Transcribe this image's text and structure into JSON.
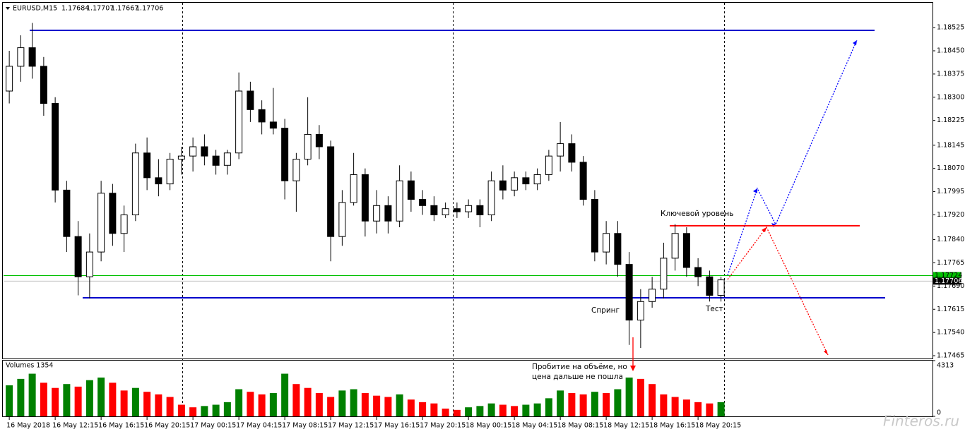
{
  "header": {
    "symbol": "EURUSD,M15",
    "ohlc": [
      1.17684,
      1.17707,
      1.17667,
      1.17706
    ]
  },
  "chart_data": {
    "type": "candlestick",
    "categories": [
      "16 May 2018",
      null,
      null,
      null,
      "16 May 12:15",
      null,
      null,
      null,
      "16 May 16:15",
      null,
      null,
      null,
      "16 May 20:15",
      null,
      null,
      null,
      "17 May 00:15",
      null,
      null,
      null,
      "17 May 04:15",
      null,
      null,
      null,
      "17 May 08:15",
      null,
      null,
      null,
      "17 May 12:15",
      null,
      null,
      null,
      "17 May 16:15",
      null,
      null,
      null,
      "17 May 20:15",
      null,
      null,
      null,
      "18 May 00:15",
      null,
      null,
      null,
      "18 May 04:15",
      null,
      null,
      null,
      "18 May 08:15",
      null,
      null,
      null,
      "18 May 12:15",
      null,
      null,
      null,
      "18 May 16:15",
      null,
      null,
      null,
      "18 May 20:15",
      null,
      null
    ],
    "open": [
      1.1832,
      1.184,
      1.1846,
      1.184,
      1.1828,
      1.18,
      1.1785,
      1.1772,
      1.178,
      1.1799,
      1.1786,
      1.1792,
      1.1812,
      1.1804,
      1.1802,
      1.181,
      1.1811,
      1.1814,
      1.1811,
      1.1808,
      1.1812,
      1.1832,
      1.1826,
      1.1822,
      1.182,
      1.1803,
      1.181,
      1.1818,
      1.1814,
      1.1785,
      1.1796,
      1.1805,
      1.179,
      1.1795,
      1.179,
      1.1803,
      1.1797,
      1.1795,
      1.1792,
      1.1794,
      1.1793,
      1.1795,
      1.1792,
      1.1803,
      1.18,
      1.1804,
      1.1802,
      1.1805,
      1.1811,
      1.1815,
      1.1809,
      1.1797,
      1.178,
      1.1786,
      1.1776,
      1.1758,
      1.1764,
      1.1768,
      1.1778,
      1.1786,
      1.1775,
      1.1772,
      1.1766
    ],
    "high": [
      1.1845,
      1.185,
      1.1854,
      1.1843,
      1.183,
      1.1803,
      1.179,
      1.1786,
      1.1803,
      1.1802,
      1.1795,
      1.1815,
      1.1817,
      1.181,
      1.1812,
      1.1814,
      1.1817,
      1.1818,
      1.1813,
      1.1813,
      1.1838,
      1.1835,
      1.1829,
      1.1833,
      1.1823,
      1.1812,
      1.183,
      1.1821,
      1.1816,
      1.18,
      1.1812,
      1.1807,
      1.18,
      1.1798,
      1.1808,
      1.1806,
      1.18,
      1.1798,
      1.1796,
      1.1796,
      1.1797,
      1.1797,
      1.1806,
      1.1808,
      1.1806,
      1.1806,
      1.1807,
      1.1813,
      1.1822,
      1.1818,
      1.1811,
      1.18,
      1.179,
      1.179,
      1.178,
      1.1768,
      1.1772,
      1.1783,
      1.1789,
      1.1788,
      1.1778,
      1.1774,
      1.1772
    ],
    "low": [
      1.1828,
      1.1835,
      1.1836,
      1.1824,
      1.1796,
      1.178,
      1.1766,
      1.1765,
      1.1777,
      1.1782,
      1.178,
      1.179,
      1.18,
      1.1798,
      1.18,
      1.1805,
      1.1806,
      1.1808,
      1.1805,
      1.1805,
      1.181,
      1.1822,
      1.1818,
      1.1818,
      1.1797,
      1.1793,
      1.1808,
      1.181,
      1.1777,
      1.1782,
      1.1795,
      1.1785,
      1.1786,
      1.1786,
      1.1788,
      1.1793,
      1.1792,
      1.179,
      1.1791,
      1.1791,
      1.1791,
      1.1788,
      1.179,
      1.1797,
      1.1798,
      1.18,
      1.18,
      1.1803,
      1.1806,
      1.1806,
      1.1795,
      1.1777,
      1.1776,
      1.1772,
      1.175,
      1.1749,
      1.1762,
      1.1765,
      1.1774,
      1.1772,
      1.1769,
      1.1764,
      1.1764
    ],
    "close": [
      1.184,
      1.1846,
      1.184,
      1.1828,
      1.18,
      1.1785,
      1.1772,
      1.178,
      1.1799,
      1.1786,
      1.1792,
      1.1812,
      1.1804,
      1.1802,
      1.181,
      1.1811,
      1.1814,
      1.1811,
      1.1808,
      1.1812,
      1.1832,
      1.1826,
      1.1822,
      1.182,
      1.1803,
      1.181,
      1.1818,
      1.1814,
      1.1785,
      1.1796,
      1.1805,
      1.179,
      1.1795,
      1.179,
      1.1803,
      1.1797,
      1.1795,
      1.1792,
      1.1794,
      1.1793,
      1.1795,
      1.1792,
      1.1803,
      1.18,
      1.1804,
      1.1802,
      1.1805,
      1.1811,
      1.1815,
      1.1809,
      1.1797,
      1.178,
      1.1786,
      1.1776,
      1.1758,
      1.1764,
      1.1768,
      1.1778,
      1.1786,
      1.1775,
      1.1772,
      1.1766,
      1.1771
    ],
    "ylim": [
      1.17456,
      1.18605
    ],
    "yticks": [
      1.18525,
      {
        "value": 1.1845,
        "label": "1.18450"
      },
      1.18375,
      {
        "value": 1.183,
        "label": "1.18300"
      },
      1.18225,
      1.18145,
      {
        "value": 1.1807,
        "label": "1.18070"
      },
      1.17995,
      {
        "value": 1.1792,
        "label": "1.17920"
      },
      {
        "value": 1.1784,
        "label": "1.17840"
      },
      1.17765,
      {
        "value": 1.1769,
        "label": "1.17690"
      },
      1.17615,
      {
        "value": 1.1754,
        "label": "1.17540"
      },
      1.17465
    ],
    "levels": [
      {
        "value": 1.18516,
        "color": "#0000cc"
      },
      {
        "value": 1.17652,
        "color": "#0000cc"
      },
      {
        "value": 1.17885,
        "color": "#ff0000"
      }
    ],
    "price_lines": [
      {
        "value": 1.17724,
        "color": "#00c000"
      },
      {
        "value": 1.17706,
        "color": "#c0c0c0"
      }
    ],
    "volume": {
      "title": "Volumes 1354",
      "values": [
        2400,
        2900,
        3300,
        2600,
        2200,
        2500,
        2300,
        2800,
        3000,
        2600,
        2000,
        2200,
        1900,
        1700,
        1500,
        900,
        700,
        800,
        900,
        1100,
        2100,
        1900,
        1700,
        1800,
        3300,
        2500,
        2200,
        1800,
        1500,
        2000,
        2100,
        1800,
        1600,
        1500,
        1700,
        1300,
        1100,
        1000,
        600,
        500,
        700,
        800,
        1000,
        900,
        800,
        900,
        1000,
        1400,
        2000,
        1800,
        1700,
        1900,
        1800,
        2100,
        3000,
        2900,
        2500,
        1700,
        1500,
        1300,
        1100,
        1000,
        1100
      ],
      "ylim": [
        0,
        4313
      ],
      "yticks": [
        0,
        4313
      ],
      "up_color": "#008000",
      "down_color": "#ff0000"
    }
  },
  "annotations": [
    "Ключевой уровень",
    "Спринг",
    "Тест",
    "Пробитие на объёме, но",
    "цена дальше не пошла"
  ],
  "watermark": "Finteros.ru"
}
